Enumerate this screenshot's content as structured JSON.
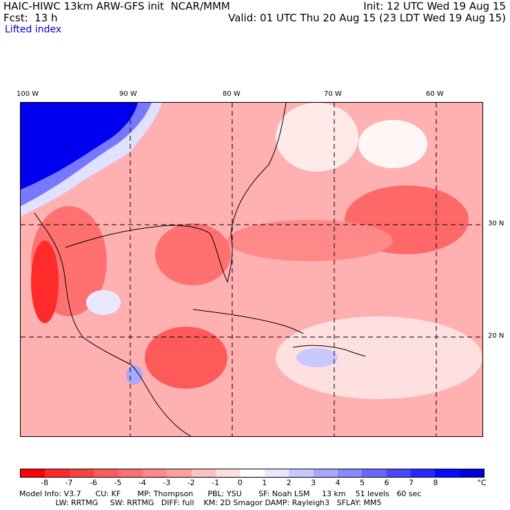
{
  "header": {
    "line1_left": "HAIC-HIWC 13km ARW-GFS init  NCAR/MMM",
    "line1_right": "Init: 12 UTC Wed 19 Aug 15",
    "line2_left": "Fcst:  13 h",
    "line2_right": "Valid: 01 UTC Thu 20 Aug 15 (23 LDT Wed 19 Aug 15)",
    "field": "Lifted index"
  },
  "map": {
    "lon_labels": [
      "100 W",
      "90 W",
      "80 W",
      "70 W",
      "60 W"
    ],
    "lat_labels": [
      "30 N",
      "20 N"
    ]
  },
  "colorbar": {
    "labels": [
      "-8",
      "-7",
      "-6",
      "-5",
      "-4",
      "-3",
      "-2",
      "-1",
      "0",
      "1",
      "2",
      "3",
      "4",
      "5",
      "6",
      "7",
      "8",
      "°C"
    ],
    "colors": [
      "#ff0000",
      "#ff2a2a",
      "#ff4040",
      "#ff5a5a",
      "#ff7070",
      "#ff8888",
      "#ffa0a0",
      "#ffc0c0",
      "#ffe0e0",
      "#ffffff",
      "#e8e8ff",
      "#c8c8ff",
      "#a8a8ff",
      "#8888ff",
      "#6868ff",
      "#4848ff",
      "#2828ff",
      "#0a0aff",
      "#0000dd"
    ]
  },
  "model_info": {
    "line1": "Model Info: V3.7      CU: KF       MP: Thompson      PBL: YSU       SF: Noah LSM     13 km    51 levels   60 sec",
    "line2": "               LW: RRTMG     SW: RRTMG   DIFF: full    KM: 2D Smagor DAMP: Rayleigh3   SFLAY: MM5"
  }
}
